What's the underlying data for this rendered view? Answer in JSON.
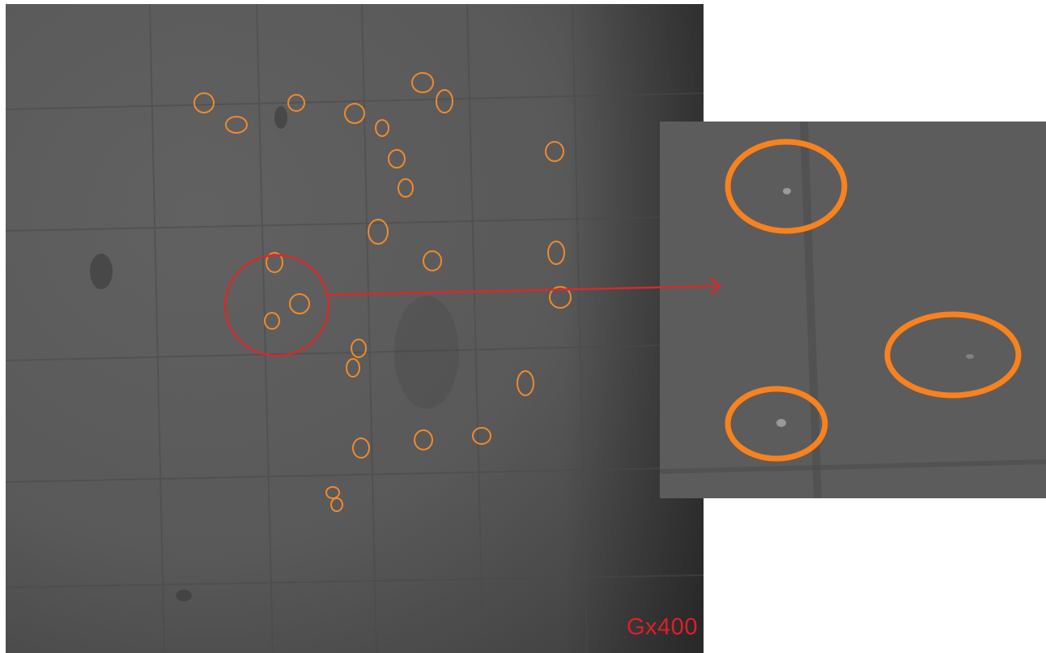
{
  "labels": {
    "magnification": "Gx400"
  },
  "colors": {
    "marker": "#f08a2c",
    "highlight": "#d62a2a",
    "label": "#e11d2a",
    "background": "#555555"
  },
  "annotations": {
    "marker_count": 30,
    "inset_marker_count": 3,
    "highlight_circle": "red-circle-around-three-particles",
    "arrow": "red-arrow-pointing-to-zoom-inset"
  }
}
